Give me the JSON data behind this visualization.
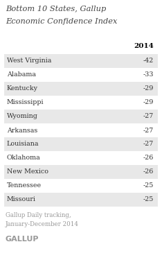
{
  "title_line1": "Bottom 10 States, Gallup",
  "title_line2": "Economic Confidence Index",
  "column_header": "2014",
  "states": [
    "West Virginia",
    "Alabama",
    "Kentucky",
    "Mississippi",
    "Wyoming",
    "Arkansas",
    "Louisiana",
    "Oklahoma",
    "New Mexico",
    "Tennessee",
    "Missouri"
  ],
  "values": [
    "-42",
    "-33",
    "-29",
    "-29",
    "-27",
    "-27",
    "-27",
    "-26",
    "-26",
    "-25",
    "-25"
  ],
  "footer_line1": "Gallup Daily tracking,",
  "footer_line2": "January-December 2014",
  "gallup_label": "GALLUP",
  "row_bg_shaded": "#e8e8e8",
  "row_bg_white": "#ffffff",
  "background_color": "#ffffff",
  "title_color": "#444444",
  "value_color": "#333333",
  "header_color": "#000000",
  "footer_color": "#999999",
  "gallup_color": "#999999"
}
